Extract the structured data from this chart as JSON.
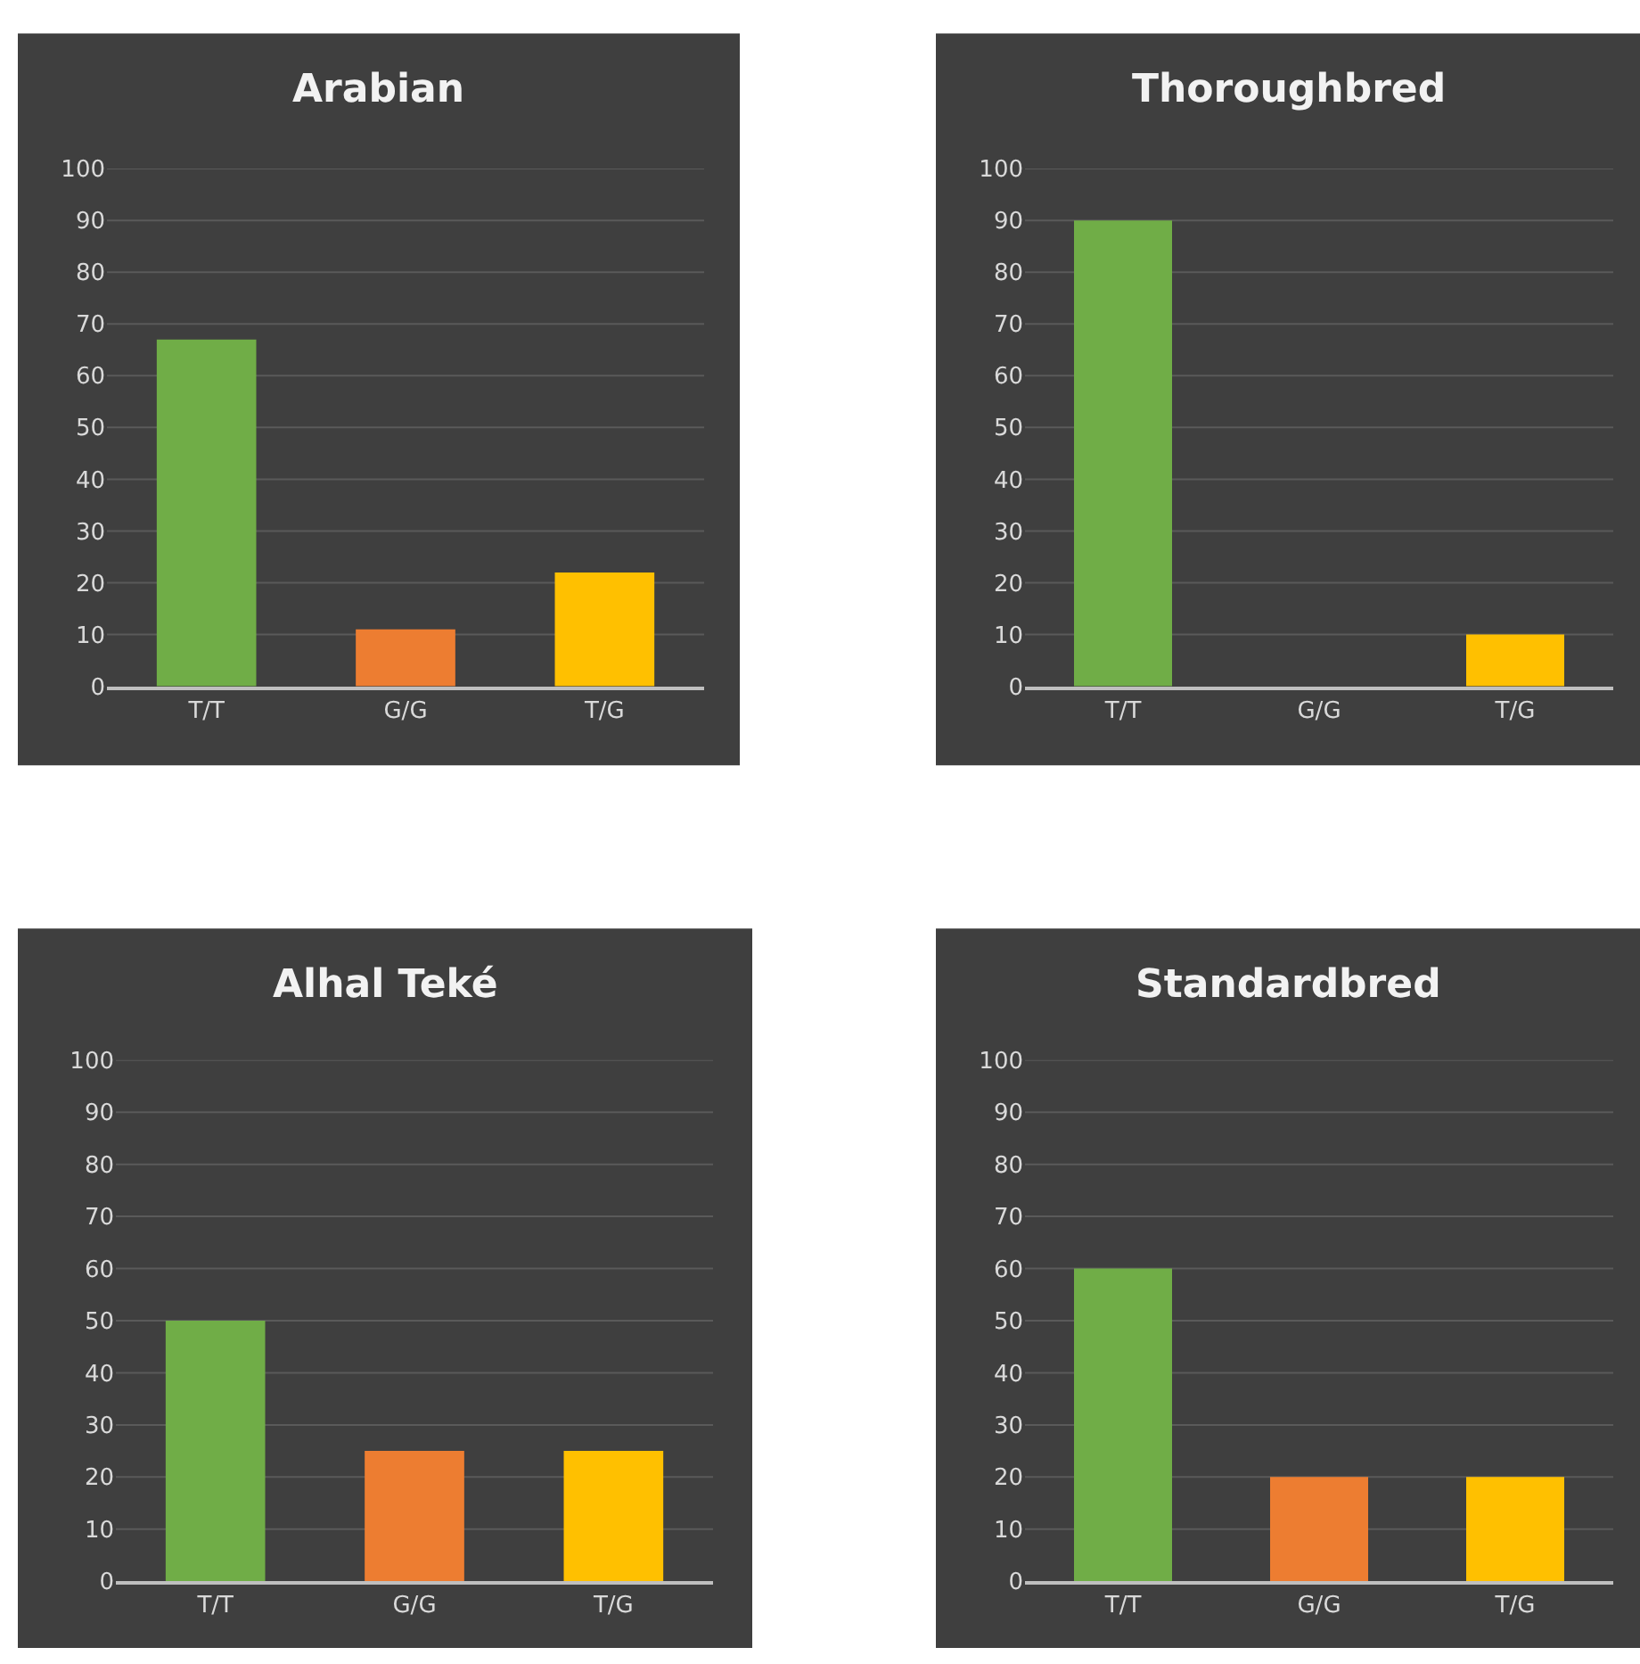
{
  "chart_data": [
    {
      "type": "bar",
      "title": "Arabian",
      "categories": [
        "T/T",
        "G/G",
        "T/G"
      ],
      "values": [
        67,
        11,
        22
      ],
      "colors": [
        "#70ad47",
        "#ed7d31",
        "#ffc000"
      ],
      "ylim": [
        0,
        100
      ],
      "yticks": [
        0,
        10,
        20,
        30,
        40,
        50,
        60,
        70,
        80,
        90,
        100
      ],
      "grid": "y"
    },
    {
      "type": "bar",
      "title": "Thoroughbred",
      "categories": [
        "T/T",
        "G/G",
        "T/G"
      ],
      "values": [
        90,
        0,
        10
      ],
      "colors": [
        "#70ad47",
        "#ed7d31",
        "#ffc000"
      ],
      "ylim": [
        0,
        100
      ],
      "yticks": [
        0,
        10,
        20,
        30,
        40,
        50,
        60,
        70,
        80,
        90,
        100
      ],
      "grid": "y"
    },
    {
      "type": "bar",
      "title": "Alhal Teké",
      "categories": [
        "T/T",
        "G/G",
        "T/G"
      ],
      "values": [
        50,
        25,
        25
      ],
      "colors": [
        "#70ad47",
        "#ed7d31",
        "#ffc000"
      ],
      "ylim": [
        0,
        100
      ],
      "yticks": [
        0,
        10,
        20,
        30,
        40,
        50,
        60,
        70,
        80,
        90,
        100
      ],
      "grid": "y"
    },
    {
      "type": "bar",
      "title": "Standardbred",
      "categories": [
        "T/T",
        "G/G",
        "T/G"
      ],
      "values": [
        60,
        20,
        20
      ],
      "colors": [
        "#70ad47",
        "#ed7d31",
        "#ffc000"
      ],
      "ylim": [
        0,
        100
      ],
      "yticks": [
        0,
        10,
        20,
        30,
        40,
        50,
        60,
        70,
        80,
        90,
        100
      ],
      "grid": "y"
    }
  ]
}
